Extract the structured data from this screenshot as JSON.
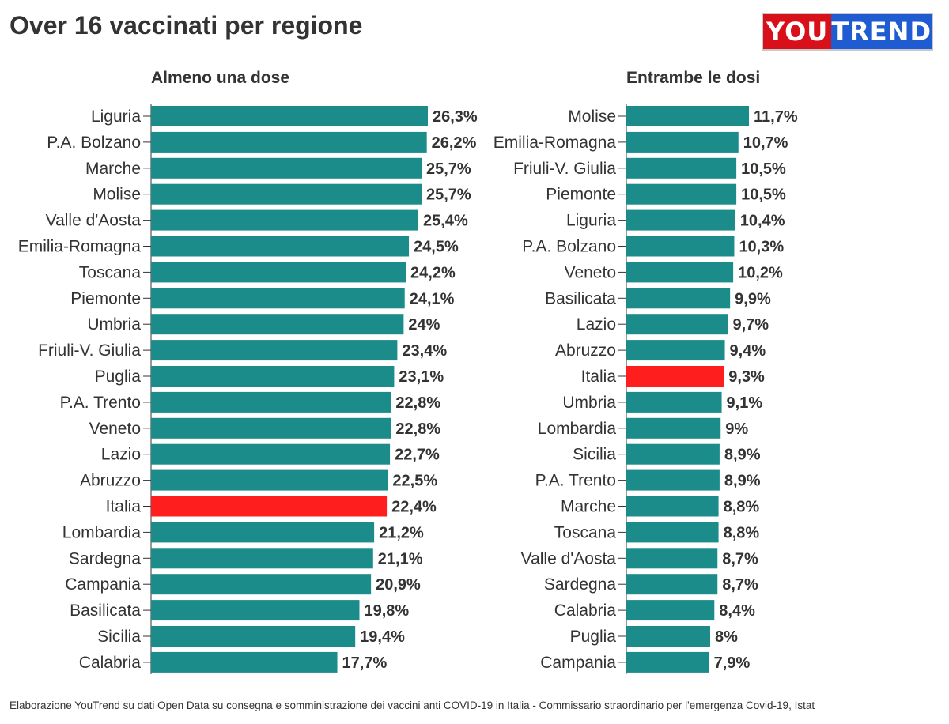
{
  "title": "Over 16 vaccinati per regione",
  "logo": {
    "left": "YOU",
    "right": "TREND",
    "alt": "YouTrend"
  },
  "source": "Elaborazione YouTrend su dati Open Data su consegna e somministrazione dei vaccini anti COVID-19 in Italia - Commissario straordinario per l'emergenza Covid-19, Istat",
  "colors": {
    "bar": "#1b8c8a",
    "highlight": "#ff1e1e",
    "axis": "#333333"
  },
  "chart_data": [
    {
      "type": "bar",
      "orientation": "horizontal",
      "title": "Almeno una dose",
      "unit": "%",
      "highlight": "Italia",
      "categories": [
        "Liguria",
        "P.A. Bolzano",
        "Marche",
        "Molise",
        "Valle d'Aosta",
        "Emilia-Romagna",
        "Toscana",
        "Piemonte",
        "Umbria",
        "Friuli-V. Giulia",
        "Puglia",
        "P.A. Trento",
        "Veneto",
        "Lazio",
        "Abruzzo",
        "Italia",
        "Lombardia",
        "Sardegna",
        "Campania",
        "Basilicata",
        "Sicilia",
        "Calabria"
      ],
      "values": [
        26.3,
        26.2,
        25.7,
        25.7,
        25.4,
        24.5,
        24.2,
        24.1,
        24,
        23.4,
        23.1,
        22.8,
        22.8,
        22.7,
        22.5,
        22.4,
        21.2,
        21.1,
        20.9,
        19.8,
        19.4,
        17.7
      ],
      "labels": [
        "26,3%",
        "26,2%",
        "25,7%",
        "25,7%",
        "25,4%",
        "24,5%",
        "24,2%",
        "24,1%",
        "24%",
        "23,4%",
        "23,1%",
        "22,8%",
        "22,8%",
        "22,7%",
        "22,5%",
        "22,4%",
        "21,2%",
        "21,1%",
        "20,9%",
        "19,8%",
        "19,4%",
        "17,7%"
      ]
    },
    {
      "type": "bar",
      "orientation": "horizontal",
      "title": "Entrambe le dosi",
      "unit": "%",
      "highlight": "Italia",
      "categories": [
        "Molise",
        "Emilia-Romagna",
        "Friuli-V. Giulia",
        "Piemonte",
        "Liguria",
        "P.A. Bolzano",
        "Veneto",
        "Basilicata",
        "Lazio",
        "Abruzzo",
        "Italia",
        "Umbria",
        "Lombardia",
        "Sicilia",
        "P.A. Trento",
        "Marche",
        "Toscana",
        "Valle d'Aosta",
        "Sardegna",
        "Calabria",
        "Puglia",
        "Campania"
      ],
      "values": [
        11.7,
        10.7,
        10.5,
        10.5,
        10.4,
        10.3,
        10.2,
        9.9,
        9.7,
        9.4,
        9.3,
        9.1,
        9,
        8.9,
        8.9,
        8.8,
        8.8,
        8.7,
        8.7,
        8.4,
        8,
        7.9
      ],
      "labels": [
        "11,7%",
        "10,7%",
        "10,5%",
        "10,5%",
        "10,4%",
        "10,3%",
        "10,2%",
        "9,9%",
        "9,7%",
        "9,4%",
        "9,3%",
        "9,1%",
        "9%",
        "8,9%",
        "8,9%",
        "8,8%",
        "8,8%",
        "8,7%",
        "8,7%",
        "8,4%",
        "8%",
        "7,9%"
      ]
    }
  ]
}
